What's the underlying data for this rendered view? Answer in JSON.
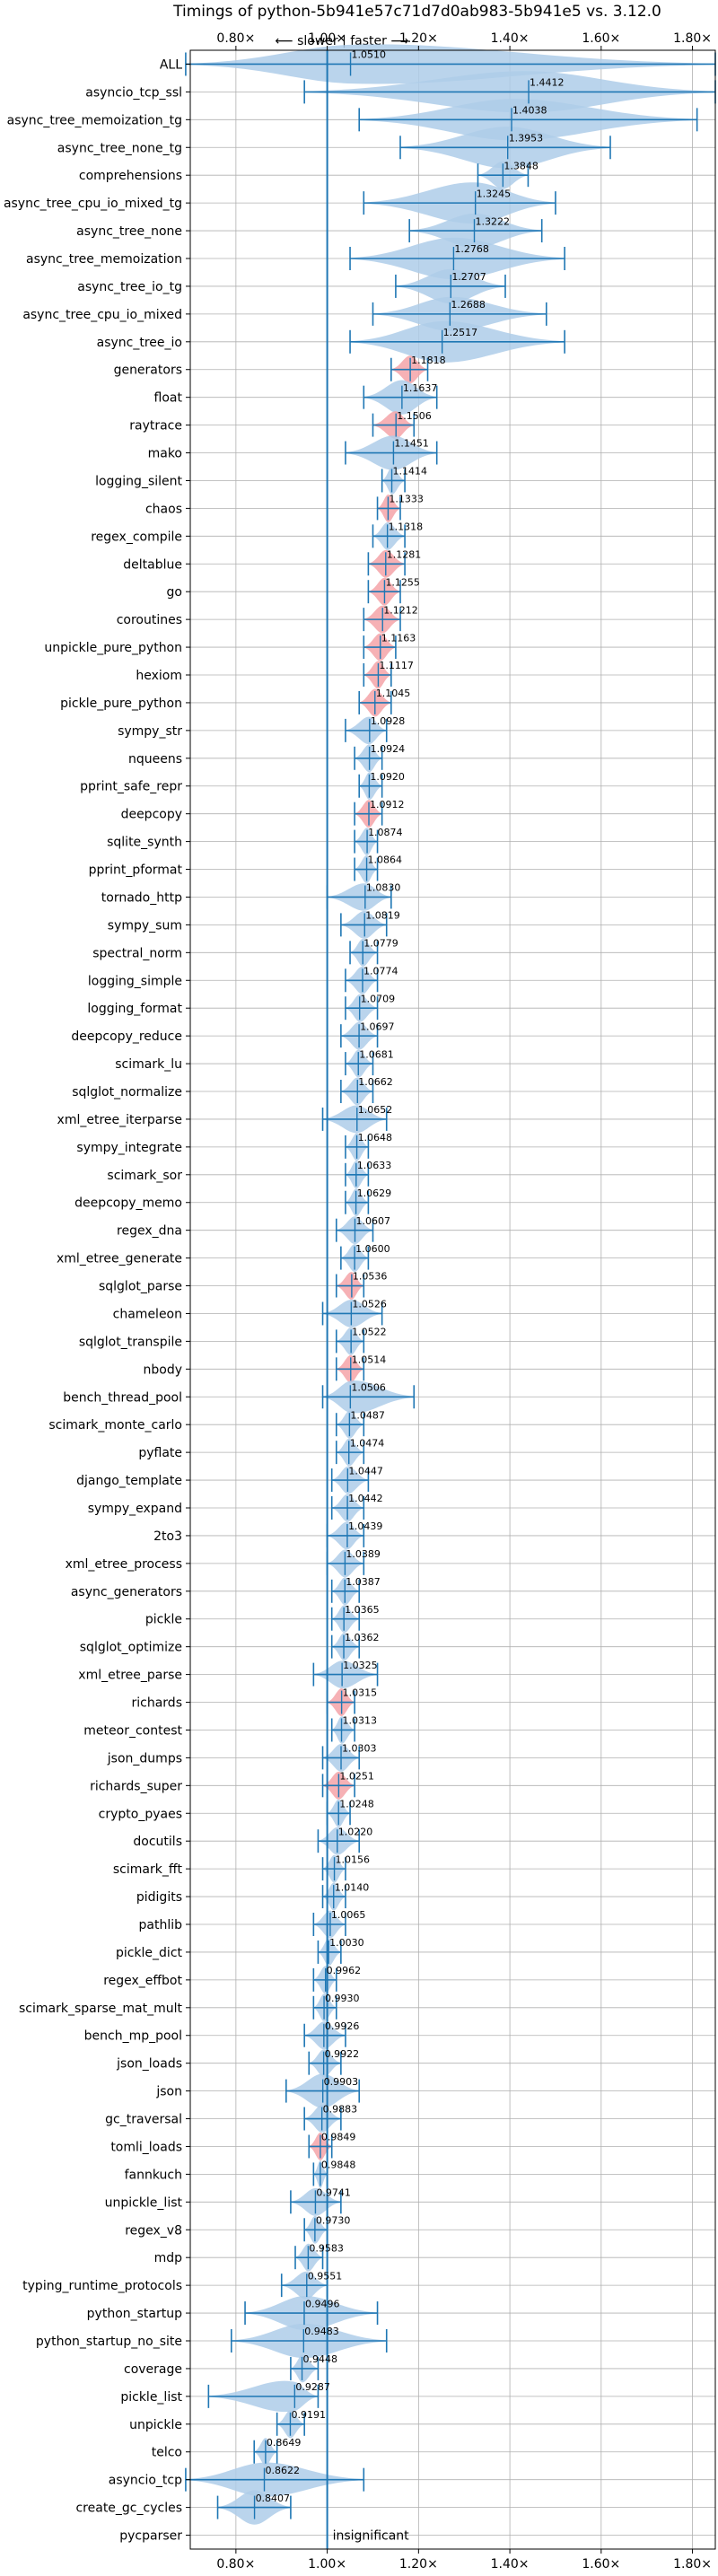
{
  "chart_data": {
    "type": "violin",
    "title": "Timings of python-5b941e57c71d7d0ab983-5b941e5 vs. 3.12.0",
    "top_axis_note": "⟵ slower | faster ⟶",
    "x_scale": "linear",
    "xlim": [
      0.7,
      1.85
    ],
    "x_ticks": [
      0.8,
      1.0,
      1.2,
      1.4,
      1.6,
      1.8
    ],
    "x_tick_labels": [
      "0.80×",
      "1.00×",
      "1.20×",
      "1.40×",
      "1.60×",
      "1.80×"
    ],
    "reference_line": 1.0,
    "grid": true,
    "colors": {
      "normal": "#1f77b4",
      "normal_fill": "#aecde9",
      "significant_fill": "#f4a3a8",
      "reference": "#1f77b4"
    },
    "benchmarks": [
      {
        "name": "ALL",
        "value": 1.051,
        "label": "1.0510",
        "low": 0.69,
        "high": 1.85
      },
      {
        "name": "asyncio_tcp_ssl",
        "value": 1.4412,
        "label": "1.4412",
        "low": 0.95,
        "high": 1.85
      },
      {
        "name": "async_tree_memoization_tg",
        "value": 1.4038,
        "label": "1.4038",
        "low": 1.07,
        "high": 1.81
      },
      {
        "name": "async_tree_none_tg",
        "value": 1.3953,
        "label": "1.3953",
        "low": 1.16,
        "high": 1.62
      },
      {
        "name": "comprehensions",
        "value": 1.3848,
        "label": "1.3848",
        "low": 1.33,
        "high": 1.44
      },
      {
        "name": "async_tree_cpu_io_mixed_tg",
        "value": 1.3245,
        "label": "1.3245",
        "low": 1.08,
        "high": 1.5
      },
      {
        "name": "async_tree_none",
        "value": 1.3222,
        "label": "1.3222",
        "low": 1.18,
        "high": 1.47
      },
      {
        "name": "async_tree_memoization",
        "value": 1.2768,
        "label": "1.2768",
        "low": 1.05,
        "high": 1.52
      },
      {
        "name": "async_tree_io_tg",
        "value": 1.2707,
        "label": "1.2707",
        "low": 1.15,
        "high": 1.39
      },
      {
        "name": "async_tree_cpu_io_mixed",
        "value": 1.2688,
        "label": "1.2688",
        "low": 1.1,
        "high": 1.48
      },
      {
        "name": "async_tree_io",
        "value": 1.2517,
        "label": "1.2517",
        "low": 1.05,
        "high": 1.52
      },
      {
        "name": "generators",
        "value": 1.1818,
        "label": "1.1818",
        "low": 1.14,
        "high": 1.22,
        "significant": true
      },
      {
        "name": "float",
        "value": 1.1637,
        "label": "1.1637",
        "low": 1.08,
        "high": 1.24
      },
      {
        "name": "raytrace",
        "value": 1.1506,
        "label": "1.1506",
        "low": 1.1,
        "high": 1.19,
        "significant": true
      },
      {
        "name": "mako",
        "value": 1.1451,
        "label": "1.1451",
        "low": 1.04,
        "high": 1.24
      },
      {
        "name": "logging_silent",
        "value": 1.1414,
        "label": "1.1414",
        "low": 1.12,
        "high": 1.17
      },
      {
        "name": "chaos",
        "value": 1.1333,
        "label": "1.1333",
        "low": 1.11,
        "high": 1.16,
        "significant": true
      },
      {
        "name": "regex_compile",
        "value": 1.1318,
        "label": "1.1318",
        "low": 1.1,
        "high": 1.17
      },
      {
        "name": "deltablue",
        "value": 1.1281,
        "label": "1.1281",
        "low": 1.09,
        "high": 1.17,
        "significant": true
      },
      {
        "name": "go",
        "value": 1.1255,
        "label": "1.1255",
        "low": 1.09,
        "high": 1.16,
        "significant": true
      },
      {
        "name": "coroutines",
        "value": 1.1212,
        "label": "1.1212",
        "low": 1.08,
        "high": 1.16,
        "significant": true
      },
      {
        "name": "unpickle_pure_python",
        "value": 1.1163,
        "label": "1.1163",
        "low": 1.08,
        "high": 1.15,
        "significant": true
      },
      {
        "name": "hexiom",
        "value": 1.1117,
        "label": "1.1117",
        "low": 1.08,
        "high": 1.14,
        "significant": true
      },
      {
        "name": "pickle_pure_python",
        "value": 1.1045,
        "label": "1.1045",
        "low": 1.07,
        "high": 1.14,
        "significant": true
      },
      {
        "name": "sympy_str",
        "value": 1.0928,
        "label": "1.0928",
        "low": 1.04,
        "high": 1.13
      },
      {
        "name": "nqueens",
        "value": 1.0924,
        "label": "1.0924",
        "low": 1.06,
        "high": 1.12
      },
      {
        "name": "pprint_safe_repr",
        "value": 1.092,
        "label": "1.0920",
        "low": 1.07,
        "high": 1.12
      },
      {
        "name": "deepcopy",
        "value": 1.0912,
        "label": "1.0912",
        "low": 1.06,
        "high": 1.12,
        "significant": true
      },
      {
        "name": "sqlite_synth",
        "value": 1.0874,
        "label": "1.0874",
        "low": 1.06,
        "high": 1.11
      },
      {
        "name": "pprint_pformat",
        "value": 1.0864,
        "label": "1.0864",
        "low": 1.06,
        "high": 1.11
      },
      {
        "name": "tornado_http",
        "value": 1.083,
        "label": "1.0830",
        "low": 1.0,
        "high": 1.14
      },
      {
        "name": "sympy_sum",
        "value": 1.0819,
        "label": "1.0819",
        "low": 1.03,
        "high": 1.13
      },
      {
        "name": "spectral_norm",
        "value": 1.0779,
        "label": "1.0779",
        "low": 1.05,
        "high": 1.11
      },
      {
        "name": "logging_simple",
        "value": 1.0774,
        "label": "1.0774",
        "low": 1.04,
        "high": 1.11
      },
      {
        "name": "logging_format",
        "value": 1.0709,
        "label": "1.0709",
        "low": 1.04,
        "high": 1.11
      },
      {
        "name": "deepcopy_reduce",
        "value": 1.0697,
        "label": "1.0697",
        "low": 1.03,
        "high": 1.11
      },
      {
        "name": "scimark_lu",
        "value": 1.0681,
        "label": "1.0681",
        "low": 1.04,
        "high": 1.1
      },
      {
        "name": "sqlglot_normalize",
        "value": 1.0662,
        "label": "1.0662",
        "low": 1.03,
        "high": 1.1
      },
      {
        "name": "xml_etree_iterparse",
        "value": 1.0652,
        "label": "1.0652",
        "low": 0.99,
        "high": 1.13
      },
      {
        "name": "sympy_integrate",
        "value": 1.0648,
        "label": "1.0648",
        "low": 1.04,
        "high": 1.09
      },
      {
        "name": "scimark_sor",
        "value": 1.0633,
        "label": "1.0633",
        "low": 1.04,
        "high": 1.09
      },
      {
        "name": "deepcopy_memo",
        "value": 1.0629,
        "label": "1.0629",
        "low": 1.04,
        "high": 1.09
      },
      {
        "name": "regex_dna",
        "value": 1.0607,
        "label": "1.0607",
        "low": 1.02,
        "high": 1.1
      },
      {
        "name": "xml_etree_generate",
        "value": 1.06,
        "label": "1.0600",
        "low": 1.03,
        "high": 1.09
      },
      {
        "name": "sqlglot_parse",
        "value": 1.0536,
        "label": "1.0536",
        "low": 1.02,
        "high": 1.08,
        "significant": true
      },
      {
        "name": "chameleon",
        "value": 1.0526,
        "label": "1.0526",
        "low": 0.99,
        "high": 1.12
      },
      {
        "name": "sqlglot_transpile",
        "value": 1.0522,
        "label": "1.0522",
        "low": 1.02,
        "high": 1.08
      },
      {
        "name": "nbody",
        "value": 1.0514,
        "label": "1.0514",
        "low": 1.02,
        "high": 1.08,
        "significant": true
      },
      {
        "name": "bench_thread_pool",
        "value": 1.0506,
        "label": "1.0506",
        "low": 0.99,
        "high": 1.19
      },
      {
        "name": "scimark_monte_carlo",
        "value": 1.0487,
        "label": "1.0487",
        "low": 1.02,
        "high": 1.08
      },
      {
        "name": "pyflate",
        "value": 1.0474,
        "label": "1.0474",
        "low": 1.02,
        "high": 1.08
      },
      {
        "name": "django_template",
        "value": 1.0447,
        "label": "1.0447",
        "low": 1.01,
        "high": 1.09
      },
      {
        "name": "sympy_expand",
        "value": 1.0442,
        "label": "1.0442",
        "low": 1.01,
        "high": 1.08
      },
      {
        "name": "2to3",
        "value": 1.0439,
        "label": "1.0439",
        "low": 1.0,
        "high": 1.08
      },
      {
        "name": "xml_etree_process",
        "value": 1.0389,
        "label": "1.0389",
        "low": 1.0,
        "high": 1.08
      },
      {
        "name": "async_generators",
        "value": 1.0387,
        "label": "1.0387",
        "low": 1.01,
        "high": 1.07
      },
      {
        "name": "pickle",
        "value": 1.0365,
        "label": "1.0365",
        "low": 1.01,
        "high": 1.07
      },
      {
        "name": "sqlglot_optimize",
        "value": 1.0362,
        "label": "1.0362",
        "low": 1.01,
        "high": 1.07
      },
      {
        "name": "xml_etree_parse",
        "value": 1.0325,
        "label": "1.0325",
        "low": 0.97,
        "high": 1.11
      },
      {
        "name": "richards",
        "value": 1.0315,
        "label": "1.0315",
        "low": 1.0,
        "high": 1.06,
        "significant": true
      },
      {
        "name": "meteor_contest",
        "value": 1.0313,
        "label": "1.0313",
        "low": 1.01,
        "high": 1.06
      },
      {
        "name": "json_dumps",
        "value": 1.0303,
        "label": "1.0303",
        "low": 0.99,
        "high": 1.07
      },
      {
        "name": "richards_super",
        "value": 1.0251,
        "label": "1.0251",
        "low": 0.99,
        "high": 1.06,
        "significant": true
      },
      {
        "name": "crypto_pyaes",
        "value": 1.0248,
        "label": "1.0248",
        "low": 1.0,
        "high": 1.05
      },
      {
        "name": "docutils",
        "value": 1.022,
        "label": "1.0220",
        "low": 0.98,
        "high": 1.07
      },
      {
        "name": "scimark_fft",
        "value": 1.0156,
        "label": "1.0156",
        "low": 0.99,
        "high": 1.04
      },
      {
        "name": "pidigits",
        "value": 1.014,
        "label": "1.0140",
        "low": 0.99,
        "high": 1.04
      },
      {
        "name": "pathlib",
        "value": 1.0065,
        "label": "1.0065",
        "low": 0.97,
        "high": 1.04
      },
      {
        "name": "pickle_dict",
        "value": 1.003,
        "label": "1.0030",
        "low": 0.98,
        "high": 1.03
      },
      {
        "name": "regex_effbot",
        "value": 0.9962,
        "label": "0.9962",
        "low": 0.97,
        "high": 1.02
      },
      {
        "name": "scimark_sparse_mat_mult",
        "value": 0.993,
        "label": "0.9930",
        "low": 0.97,
        "high": 1.02
      },
      {
        "name": "bench_mp_pool",
        "value": 0.9926,
        "label": "0.9926",
        "low": 0.95,
        "high": 1.04
      },
      {
        "name": "json_loads",
        "value": 0.9922,
        "label": "0.9922",
        "low": 0.96,
        "high": 1.03
      },
      {
        "name": "json",
        "value": 0.9903,
        "label": "0.9903",
        "low": 0.91,
        "high": 1.07
      },
      {
        "name": "gc_traversal",
        "value": 0.9883,
        "label": "0.9883",
        "low": 0.95,
        "high": 1.03
      },
      {
        "name": "tomli_loads",
        "value": 0.9849,
        "label": "0.9849",
        "low": 0.96,
        "high": 1.01,
        "significant": true
      },
      {
        "name": "fannkuch",
        "value": 0.9848,
        "label": "0.9848",
        "low": 0.97,
        "high": 1.0
      },
      {
        "name": "unpickle_list",
        "value": 0.9741,
        "label": "0.9741",
        "low": 0.92,
        "high": 1.03
      },
      {
        "name": "regex_v8",
        "value": 0.973,
        "label": "0.9730",
        "low": 0.95,
        "high": 1.0
      },
      {
        "name": "mdp",
        "value": 0.9583,
        "label": "0.9583",
        "low": 0.93,
        "high": 0.99
      },
      {
        "name": "typing_runtime_protocols",
        "value": 0.9551,
        "label": "0.9551",
        "low": 0.9,
        "high": 1.0
      },
      {
        "name": "python_startup",
        "value": 0.9496,
        "label": "0.9496",
        "low": 0.82,
        "high": 1.11
      },
      {
        "name": "python_startup_no_site",
        "value": 0.9483,
        "label": "0.9483",
        "low": 0.79,
        "high": 1.13
      },
      {
        "name": "coverage",
        "value": 0.9448,
        "label": "0.9448",
        "low": 0.92,
        "high": 0.98
      },
      {
        "name": "pickle_list",
        "value": 0.9287,
        "label": "0.9287",
        "low": 0.74,
        "high": 0.98
      },
      {
        "name": "unpickle",
        "value": 0.9191,
        "label": "0.9191",
        "low": 0.89,
        "high": 0.95
      },
      {
        "name": "telco",
        "value": 0.8649,
        "label": "0.8649",
        "low": 0.84,
        "high": 0.89
      },
      {
        "name": "asyncio_tcp",
        "value": 0.8622,
        "label": "0.8622",
        "low": 0.69,
        "high": 1.08
      },
      {
        "name": "create_gc_cycles",
        "value": 0.8407,
        "label": "0.8407",
        "low": 0.76,
        "high": 0.92
      },
      {
        "name": "pycparser",
        "value": null,
        "label": "insignificant"
      }
    ]
  }
}
